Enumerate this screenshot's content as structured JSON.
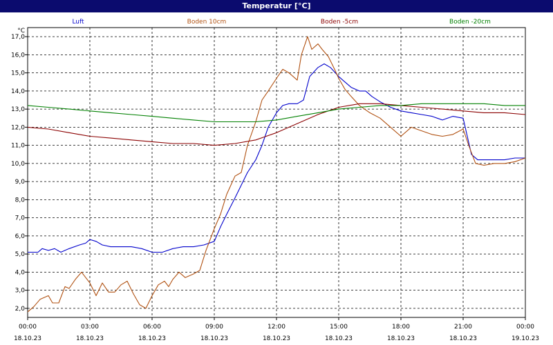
{
  "title": "Temperatur [°C]",
  "chart_data": {
    "type": "line",
    "title": "Temperatur [°C]",
    "ylabel": "°C",
    "xlabel": "",
    "ylim": [
      1.5,
      17.5
    ],
    "xlim": [
      0,
      24
    ],
    "grid": true,
    "legend_position": "top",
    "y_ticks": [
      "2,0",
      "3,0",
      "4,0",
      "5,0",
      "6,0",
      "7,0",
      "8,0",
      "9,0",
      "10,0",
      "11,0",
      "12,0",
      "13,0",
      "14,0",
      "15,0",
      "16,0",
      "17,0"
    ],
    "y_tick_values": [
      2,
      3,
      4,
      5,
      6,
      7,
      8,
      9,
      10,
      11,
      12,
      13,
      14,
      15,
      16,
      17
    ],
    "x_ticks": [
      {
        "x": 0,
        "time": "00:00",
        "date": "18.10.23"
      },
      {
        "x": 3,
        "time": "03:00",
        "date": "18.10.23"
      },
      {
        "x": 6,
        "time": "06:00",
        "date": "18.10.23"
      },
      {
        "x": 9,
        "time": "09:00",
        "date": "18.10.23"
      },
      {
        "x": 12,
        "time": "12:00",
        "date": "18.10.23"
      },
      {
        "x": 15,
        "time": "15:00",
        "date": "18.10.23"
      },
      {
        "x": 18,
        "time": "18:00",
        "date": "18.10.23"
      },
      {
        "x": 21,
        "time": "21:00",
        "date": "18.10.23"
      },
      {
        "x": 24,
        "time": "00:00",
        "date": "19.10.23"
      }
    ],
    "series": [
      {
        "name": "Luft",
        "color": "#0000cc",
        "points": [
          [
            0,
            5.1
          ],
          [
            0.5,
            5.1
          ],
          [
            0.7,
            5.3
          ],
          [
            1,
            5.2
          ],
          [
            1.3,
            5.3
          ],
          [
            1.6,
            5.1
          ],
          [
            2,
            5.3
          ],
          [
            2.5,
            5.5
          ],
          [
            2.8,
            5.6
          ],
          [
            3,
            5.8
          ],
          [
            3.3,
            5.7
          ],
          [
            3.6,
            5.5
          ],
          [
            4,
            5.4
          ],
          [
            4.5,
            5.4
          ],
          [
            5,
            5.4
          ],
          [
            5.5,
            5.3
          ],
          [
            6,
            5.1
          ],
          [
            6.5,
            5.1
          ],
          [
            7,
            5.3
          ],
          [
            7.5,
            5.4
          ],
          [
            8,
            5.4
          ],
          [
            8.5,
            5.5
          ],
          [
            9,
            5.7
          ],
          [
            9.3,
            6.5
          ],
          [
            9.6,
            7.2
          ],
          [
            10,
            8.1
          ],
          [
            10.3,
            8.8
          ],
          [
            10.6,
            9.5
          ],
          [
            11,
            10.2
          ],
          [
            11.3,
            11
          ],
          [
            11.6,
            12
          ],
          [
            12,
            12.8
          ],
          [
            12.3,
            13.2
          ],
          [
            12.6,
            13.3
          ],
          [
            13,
            13.3
          ],
          [
            13.3,
            13.5
          ],
          [
            13.6,
            14.8
          ],
          [
            14,
            15.3
          ],
          [
            14.3,
            15.5
          ],
          [
            14.6,
            15.3
          ],
          [
            15,
            14.8
          ],
          [
            15.3,
            14.5
          ],
          [
            15.6,
            14.2
          ],
          [
            16,
            14
          ],
          [
            16.3,
            14
          ],
          [
            16.6,
            13.7
          ],
          [
            17,
            13.4
          ],
          [
            17.5,
            13.1
          ],
          [
            18,
            12.9
          ],
          [
            18.5,
            12.8
          ],
          [
            19,
            12.7
          ],
          [
            19.5,
            12.6
          ],
          [
            20,
            12.4
          ],
          [
            20.5,
            12.6
          ],
          [
            21,
            12.5
          ],
          [
            21.2,
            11.5
          ],
          [
            21.4,
            10.5
          ],
          [
            21.7,
            10.2
          ],
          [
            22,
            10.2
          ],
          [
            22.5,
            10.2
          ],
          [
            23,
            10.2
          ],
          [
            23.5,
            10.3
          ],
          [
            24,
            10.3
          ]
        ]
      },
      {
        "name": "Boden 10cm",
        "color": "#b05010",
        "points": [
          [
            0,
            1.8
          ],
          [
            0.3,
            2.1
          ],
          [
            0.6,
            2.5
          ],
          [
            1,
            2.7
          ],
          [
            1.2,
            2.3
          ],
          [
            1.5,
            2.3
          ],
          [
            1.8,
            3.2
          ],
          [
            2,
            3.1
          ],
          [
            2.3,
            3.6
          ],
          [
            2.6,
            4
          ],
          [
            2.8,
            3.7
          ],
          [
            3,
            3.4
          ],
          [
            3.3,
            2.7
          ],
          [
            3.6,
            3.4
          ],
          [
            3.9,
            2.9
          ],
          [
            4.2,
            2.9
          ],
          [
            4.5,
            3.3
          ],
          [
            4.8,
            3.5
          ],
          [
            5.1,
            2.8
          ],
          [
            5.4,
            2.2
          ],
          [
            5.7,
            2
          ],
          [
            6,
            2.7
          ],
          [
            6.3,
            3.3
          ],
          [
            6.6,
            3.5
          ],
          [
            6.8,
            3.2
          ],
          [
            7,
            3.6
          ],
          [
            7.3,
            4
          ],
          [
            7.6,
            3.7
          ],
          [
            8,
            3.9
          ],
          [
            8.3,
            4.1
          ],
          [
            8.6,
            5.2
          ],
          [
            9,
            6.4
          ],
          [
            9.3,
            7.2
          ],
          [
            9.6,
            8.3
          ],
          [
            10,
            9.3
          ],
          [
            10.3,
            9.5
          ],
          [
            10.6,
            11
          ],
          [
            11,
            12.3
          ],
          [
            11.3,
            13.5
          ],
          [
            11.6,
            14
          ],
          [
            12,
            14.7
          ],
          [
            12.3,
            15.2
          ],
          [
            12.6,
            15
          ],
          [
            13,
            14.6
          ],
          [
            13.2,
            16
          ],
          [
            13.5,
            17
          ],
          [
            13.7,
            16.3
          ],
          [
            14,
            16.6
          ],
          [
            14.2,
            16.3
          ],
          [
            14.5,
            15.9
          ],
          [
            14.8,
            15.2
          ],
          [
            15,
            14.7
          ],
          [
            15.3,
            14.1
          ],
          [
            15.6,
            13.7
          ],
          [
            16,
            13.2
          ],
          [
            16.5,
            12.8
          ],
          [
            17,
            12.5
          ],
          [
            17.5,
            12
          ],
          [
            18,
            11.5
          ],
          [
            18.5,
            12
          ],
          [
            19,
            11.8
          ],
          [
            19.5,
            11.6
          ],
          [
            20,
            11.5
          ],
          [
            20.5,
            11.6
          ],
          [
            21,
            11.9
          ],
          [
            21.3,
            10.9
          ],
          [
            21.6,
            10
          ],
          [
            22,
            9.9
          ],
          [
            22.5,
            10
          ],
          [
            23,
            10
          ],
          [
            23.5,
            10.1
          ],
          [
            24,
            10.3
          ]
        ]
      },
      {
        "name": "Boden -5cm",
        "color": "#8b0000",
        "points": [
          [
            0,
            12
          ],
          [
            1,
            11.9
          ],
          [
            2,
            11.7
          ],
          [
            3,
            11.5
          ],
          [
            4,
            11.4
          ],
          [
            5,
            11.3
          ],
          [
            6,
            11.2
          ],
          [
            7,
            11.1
          ],
          [
            8,
            11.1
          ],
          [
            9,
            11
          ],
          [
            10,
            11.1
          ],
          [
            11,
            11.3
          ],
          [
            12,
            11.7
          ],
          [
            13,
            12.2
          ],
          [
            14,
            12.7
          ],
          [
            15,
            13.1
          ],
          [
            16,
            13.3
          ],
          [
            17,
            13.3
          ],
          [
            18,
            13.2
          ],
          [
            19,
            13.1
          ],
          [
            20,
            13
          ],
          [
            21,
            12.9
          ],
          [
            22,
            12.8
          ],
          [
            23,
            12.8
          ],
          [
            24,
            12.7
          ]
        ]
      },
      {
        "name": "Boden -20cm",
        "color": "#008000",
        "points": [
          [
            0,
            13.2
          ],
          [
            1,
            13.1
          ],
          [
            2,
            13
          ],
          [
            3,
            12.9
          ],
          [
            4,
            12.8
          ],
          [
            5,
            12.7
          ],
          [
            6,
            12.6
          ],
          [
            7,
            12.5
          ],
          [
            8,
            12.4
          ],
          [
            9,
            12.3
          ],
          [
            10,
            12.3
          ],
          [
            11,
            12.3
          ],
          [
            12,
            12.4
          ],
          [
            13,
            12.6
          ],
          [
            14,
            12.8
          ],
          [
            15,
            13
          ],
          [
            16,
            13.1
          ],
          [
            17,
            13.2
          ],
          [
            18,
            13.2
          ],
          [
            19,
            13.3
          ],
          [
            20,
            13.3
          ],
          [
            21,
            13.3
          ],
          [
            22,
            13.3
          ],
          [
            23,
            13.2
          ],
          [
            24,
            13.2
          ]
        ]
      }
    ]
  }
}
